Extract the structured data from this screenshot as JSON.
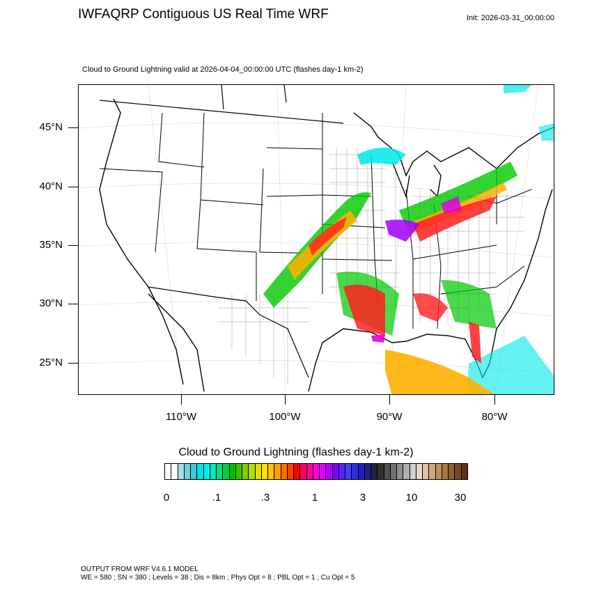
{
  "title": "IWFAQRP Contiguous US Real Time WRF",
  "init": "Init: 2026-03-31_00:00:00",
  "subtitle": "Cloud to Ground Lightning valid at 2026-04-04_00:00:00 UTC   (flashes day-1 km-2)",
  "lat_labels": [
    "45°N",
    "40°N",
    "35°N",
    "30°N",
    "25°N"
  ],
  "lon_labels": [
    "110°W",
    "100°W",
    "90°W",
    "80°W"
  ],
  "colorbar": {
    "title": "Cloud to Ground Lightning  (flashes day-1 km-2)",
    "tick_labels": [
      "0",
      ".1",
      ".3",
      "1",
      "3",
      "10",
      "30"
    ],
    "colors": [
      "#ffffff",
      "#ffffff",
      "#a0e0e8",
      "#70d0e0",
      "#40c8d8",
      "#00e0e8",
      "#00f0f0",
      "#00e8c0",
      "#00e080",
      "#00d040",
      "#00c000",
      "#40c000",
      "#80d000",
      "#b0e000",
      "#e0e000",
      "#ffe000",
      "#ffc000",
      "#ffa000",
      "#ff7000",
      "#ff4000",
      "#ff0000",
      "#ff0060",
      "#ff00a0",
      "#ff00e0",
      "#e000ff",
      "#b000ff",
      "#8000ff",
      "#6020ff",
      "#4040ff",
      "#3030e0",
      "#2020c0",
      "#202080",
      "#202040",
      "#303030",
      "#505050",
      "#707070",
      "#909090",
      "#b0b0b0",
      "#d0d0d0",
      "#e8d8c8",
      "#e0c0a0",
      "#d0a880",
      "#c09060",
      "#a87848",
      "#906030",
      "#784820",
      "#603010"
    ]
  },
  "footer": {
    "line1": "OUTPUT FROM WRF V4.6.1 MODEL",
    "line2": "WE = 580 ; SN = 380 ; Levels = 38 ; Dis = 8km ; Phys Opt = 8 ; PBL Opt = 1 ; Cu Opt = 5"
  },
  "map_colors": {
    "cyan": "#00e8e8",
    "green": "#00c800",
    "yellow_orange": "#ffb000",
    "red": "#ff2020",
    "magenta": "#e000e0",
    "purple": "#a000ff"
  }
}
